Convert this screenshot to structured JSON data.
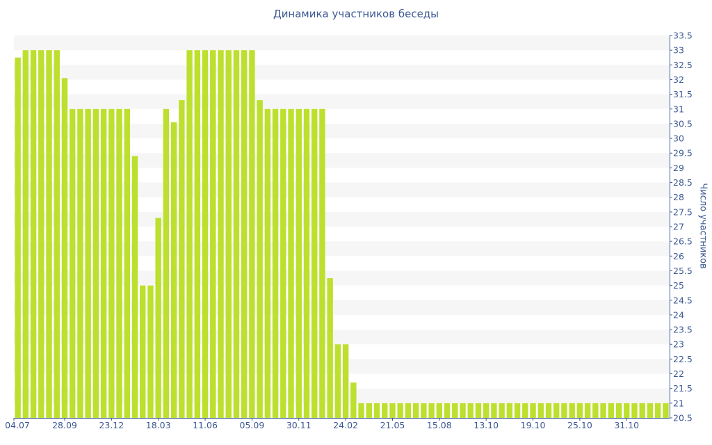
{
  "colors": {
    "bar": "#bddf2e",
    "band": "#f6f6f6",
    "axis": "#3b5893",
    "text": "#3b5893"
  },
  "chart_data": {
    "type": "bar",
    "title": "Динамика участников беседы",
    "xlabel": "",
    "ylabel": "Число участников",
    "ylim": [
      20.5,
      33.5
    ],
    "yticks": [
      "20.5",
      "21",
      "21.5",
      "22",
      "22.5",
      "23",
      "23.5",
      "24",
      "24.5",
      "25",
      "25.5",
      "26",
      "26.5",
      "27",
      "27.5",
      "28",
      "28.5",
      "29",
      "29.5",
      "30",
      "30.5",
      "31",
      "31.5",
      "32",
      "32.5",
      "33",
      "33.5"
    ],
    "xtick_labels": [
      {
        "index": 0,
        "label": "04.07"
      },
      {
        "index": 6,
        "label": "28.09"
      },
      {
        "index": 12,
        "label": "23.12"
      },
      {
        "index": 18,
        "label": "18.03"
      },
      {
        "index": 24,
        "label": "11.06"
      },
      {
        "index": 30,
        "label": "05.09"
      },
      {
        "index": 36,
        "label": "30.11"
      },
      {
        "index": 42,
        "label": "24.02"
      },
      {
        "index": 48,
        "label": "21.05"
      },
      {
        "index": 54,
        "label": "15.08"
      },
      {
        "index": 60,
        "label": "13.10"
      },
      {
        "index": 66,
        "label": "19.10"
      },
      {
        "index": 72,
        "label": "25.10"
      },
      {
        "index": 78,
        "label": "31.10"
      }
    ],
    "grid": "horizontal bands",
    "y_axis_side": "right",
    "series": [
      {
        "values": [
          32.75,
          33,
          33,
          33,
          33,
          33,
          32.05,
          31,
          31,
          31,
          31,
          31,
          31,
          31,
          31,
          29.4,
          25,
          25,
          27.3,
          31,
          30.55,
          31.3,
          33,
          33,
          33,
          33,
          33,
          33,
          33,
          33,
          33,
          31.3,
          31,
          31,
          31,
          31,
          31,
          31,
          31,
          31,
          25.25,
          23,
          23,
          21.7,
          21,
          21,
          21,
          21,
          21,
          21,
          21,
          21,
          21,
          21,
          21,
          21,
          21,
          21,
          21,
          21,
          21,
          21,
          21,
          21,
          21,
          21,
          21,
          21,
          21,
          21,
          21,
          21,
          21,
          21,
          21,
          21,
          21,
          21,
          21,
          21,
          21,
          21,
          21,
          21
        ]
      }
    ]
  }
}
